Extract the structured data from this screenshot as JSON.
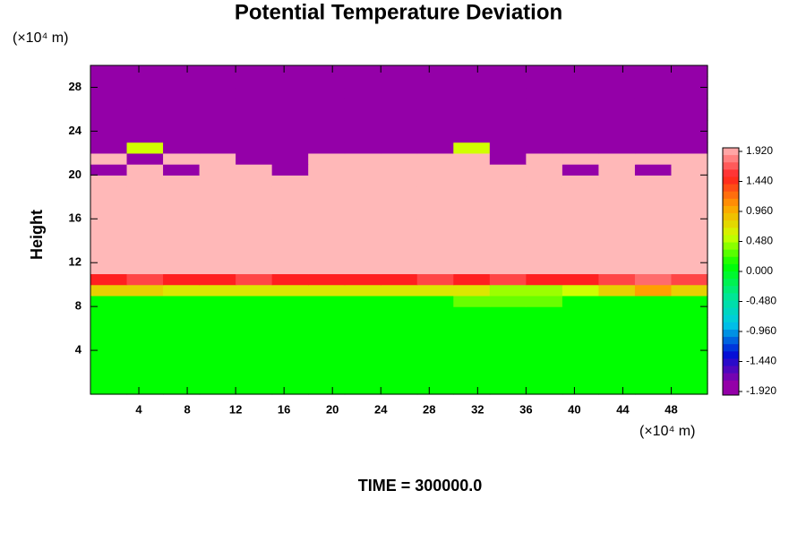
{
  "chart_data": {
    "type": "heatmap",
    "title": "Potential Temperature Deviation",
    "y_label": "Height",
    "y_unit": "(×10⁴ m)",
    "x_unit": "(×10⁴ m)",
    "footer": "TIME = 300000.0",
    "xlim": [
      0,
      51
    ],
    "ylim": [
      0,
      30
    ],
    "xticks": [
      4,
      8,
      12,
      16,
      20,
      24,
      28,
      32,
      36,
      40,
      44,
      48
    ],
    "yticks": [
      4,
      8,
      12,
      16,
      20,
      24,
      28
    ],
    "x": [
      1.5,
      4.5,
      7.5,
      10.5,
      13.5,
      16.5,
      19.5,
      22.5,
      25.5,
      28.5,
      31.5,
      34.5,
      37.5,
      40.5,
      43.5,
      46.5,
      49.5
    ],
    "y": [
      0.5,
      1.5,
      2.5,
      3.5,
      4.5,
      5.5,
      6.5,
      7.5,
      8.5,
      9.5,
      10.5,
      11.5,
      12.5,
      13.5,
      14.5,
      15.5,
      16.5,
      17.5,
      18.5,
      19.5,
      20.5,
      21.5,
      22.5,
      23.5,
      24.5,
      25.5,
      26.5,
      27.5,
      28.5,
      29.5
    ],
    "z": [
      [
        0,
        0,
        0,
        0,
        0,
        0,
        0,
        0,
        0,
        0,
        0,
        0,
        0,
        0,
        0,
        0,
        0
      ],
      [
        0,
        0,
        0,
        0,
        0,
        0,
        0,
        0,
        0,
        0,
        0,
        0,
        0,
        0,
        0,
        0,
        0
      ],
      [
        0,
        0,
        0,
        0,
        0,
        0,
        0,
        0,
        0,
        0,
        0,
        0,
        0,
        0,
        0,
        0,
        0
      ],
      [
        0,
        0,
        0,
        0,
        0,
        0,
        0,
        0,
        0,
        0,
        0,
        0,
        0,
        0,
        0,
        0,
        0
      ],
      [
        0,
        0,
        0,
        0,
        0,
        0,
        0,
        0,
        0,
        0,
        0,
        0,
        0,
        0,
        0,
        0,
        0
      ],
      [
        0,
        0,
        0,
        0,
        0,
        0,
        0,
        0,
        0,
        0,
        0,
        0,
        0,
        0,
        0,
        0,
        0
      ],
      [
        0,
        0,
        0,
        0,
        0,
        0,
        0,
        0,
        0,
        0,
        0,
        0,
        0,
        0,
        0,
        0,
        0
      ],
      [
        0,
        0,
        0,
        0,
        0,
        0,
        0,
        0,
        0,
        0,
        0,
        0,
        0,
        0,
        0,
        0,
        0
      ],
      [
        0,
        0,
        0,
        0,
        0,
        0,
        0,
        0,
        0,
        0,
        0.24,
        0.24,
        0.24,
        0,
        0,
        0,
        0
      ],
      [
        0.72,
        0.72,
        0.6,
        0.6,
        0.6,
        0.6,
        0.6,
        0.6,
        0.6,
        0.6,
        0.6,
        0.36,
        0.36,
        0.48,
        0.72,
        0.96,
        0.72
      ],
      [
        1.44,
        1.56,
        1.44,
        1.44,
        1.56,
        1.44,
        1.44,
        1.44,
        1.44,
        1.56,
        1.44,
        1.56,
        1.44,
        1.44,
        1.56,
        1.68,
        1.56
      ],
      [
        1.92,
        1.92,
        1.92,
        1.92,
        1.92,
        1.92,
        1.92,
        1.92,
        1.92,
        1.92,
        1.92,
        1.92,
        1.92,
        1.92,
        1.92,
        1.92,
        1.92
      ],
      [
        1.92,
        1.92,
        1.92,
        1.92,
        1.92,
        1.92,
        1.92,
        1.92,
        1.92,
        1.92,
        1.92,
        1.92,
        1.92,
        1.92,
        1.92,
        1.92,
        1.92
      ],
      [
        1.92,
        1.92,
        1.92,
        1.92,
        1.92,
        1.92,
        1.92,
        1.92,
        1.92,
        1.92,
        1.92,
        1.92,
        1.92,
        1.92,
        1.92,
        1.92,
        1.92
      ],
      [
        1.92,
        1.92,
        1.92,
        1.92,
        1.92,
        1.92,
        1.92,
        1.92,
        1.92,
        1.92,
        1.92,
        1.92,
        1.92,
        1.92,
        1.92,
        1.92,
        1.92
      ],
      [
        1.92,
        1.92,
        1.92,
        1.92,
        1.92,
        1.92,
        1.92,
        1.92,
        1.92,
        1.92,
        1.92,
        1.92,
        1.92,
        1.92,
        1.92,
        1.92,
        1.92
      ],
      [
        1.92,
        1.92,
        1.92,
        1.92,
        1.92,
        1.92,
        1.92,
        1.92,
        1.92,
        1.92,
        1.92,
        1.92,
        1.92,
        1.92,
        1.92,
        1.92,
        1.92
      ],
      [
        1.92,
        1.92,
        1.92,
        1.92,
        1.92,
        1.92,
        1.92,
        1.92,
        1.92,
        1.92,
        1.92,
        1.92,
        1.92,
        1.92,
        1.92,
        1.92,
        1.92
      ],
      [
        1.92,
        1.92,
        1.92,
        1.92,
        1.92,
        1.92,
        1.92,
        1.92,
        1.92,
        1.92,
        1.92,
        1.92,
        1.92,
        1.92,
        1.92,
        1.92,
        1.92
      ],
      [
        1.92,
        1.92,
        1.92,
        1.92,
        1.92,
        1.92,
        1.92,
        1.92,
        1.92,
        1.92,
        1.92,
        1.92,
        1.92,
        1.92,
        1.92,
        1.92,
        1.92
      ],
      [
        -1.92,
        1.92,
        -1.92,
        1.92,
        1.92,
        -1.92,
        1.92,
        1.92,
        1.92,
        1.92,
        1.92,
        1.92,
        1.92,
        -1.92,
        1.92,
        -1.92,
        1.92
      ],
      [
        1.92,
        -1.92,
        1.92,
        1.92,
        -1.92,
        -1.92,
        1.92,
        1.92,
        1.92,
        1.92,
        1.92,
        -1.92,
        1.92,
        1.92,
        1.92,
        1.92,
        1.92
      ],
      [
        -1.92,
        0.48,
        -1.92,
        -1.92,
        -1.92,
        -1.92,
        -1.92,
        -1.92,
        -1.92,
        -1.92,
        0.48,
        -1.92,
        -1.92,
        -1.92,
        -1.92,
        -1.92,
        -1.92
      ],
      [
        -1.92,
        -1.92,
        -1.92,
        -1.92,
        -1.92,
        -1.92,
        -1.92,
        -1.92,
        -1.92,
        -1.92,
        -1.92,
        -1.92,
        -1.92,
        -1.92,
        -1.92,
        -1.92,
        -1.92
      ],
      [
        -1.92,
        -1.92,
        -1.92,
        -1.92,
        -1.92,
        -1.92,
        -1.92,
        -1.92,
        -1.92,
        -1.92,
        -1.92,
        -1.92,
        -1.92,
        -1.92,
        -1.92,
        -1.92,
        -1.92
      ],
      [
        -1.92,
        -1.92,
        -1.92,
        -1.92,
        -1.92,
        -1.92,
        -1.92,
        -1.92,
        -1.92,
        -1.92,
        -1.92,
        -1.92,
        -1.92,
        -1.92,
        -1.92,
        -1.92,
        -1.92
      ],
      [
        -1.92,
        -1.92,
        -1.92,
        -1.92,
        -1.92,
        -1.92,
        -1.92,
        -1.92,
        -1.92,
        -1.92,
        -1.92,
        -1.92,
        -1.92,
        -1.92,
        -1.92,
        -1.92,
        -1.92
      ],
      [
        -1.92,
        -1.92,
        -1.92,
        -1.92,
        -1.92,
        -1.92,
        -1.92,
        -1.92,
        -1.92,
        -1.92,
        -1.92,
        -1.92,
        -1.92,
        -1.92,
        -1.92,
        -1.92,
        -1.92
      ],
      [
        -1.92,
        -1.92,
        -1.92,
        -1.92,
        -1.92,
        -1.92,
        -1.92,
        -1.92,
        -1.92,
        -1.92,
        -1.92,
        -1.92,
        -1.92,
        -1.92,
        -1.92,
        -1.92,
        -1.92
      ],
      [
        -1.92,
        -1.92,
        -1.92,
        -1.92,
        -1.92,
        -1.92,
        -1.92,
        -1.92,
        -1.92,
        -1.92,
        -1.92,
        -1.92,
        -1.92,
        -1.92,
        -1.92,
        -1.92,
        -1.92
      ]
    ],
    "colormap": [
      "#9400a8",
      "#0010d8",
      "#00c8e8",
      "#00e890",
      "#00ff00",
      "#d0ff00",
      "#ffa000",
      "#ff2020",
      "#ffb8b8"
    ],
    "colorbar_ticks": [
      {
        "value": -1.92,
        "label": "-1.920"
      },
      {
        "value": -1.44,
        "label": "-1.440"
      },
      {
        "value": -0.96,
        "label": "-0.960"
      },
      {
        "value": -0.48,
        "label": "-0.480"
      },
      {
        "value": 0,
        "label": "0.000"
      },
      {
        "value": 0.48,
        "label": "0.480"
      },
      {
        "value": 0.96,
        "label": "0.960"
      },
      {
        "value": 1.44,
        "label": "1.440"
      },
      {
        "value": 1.92,
        "label": "1.920"
      }
    ]
  }
}
